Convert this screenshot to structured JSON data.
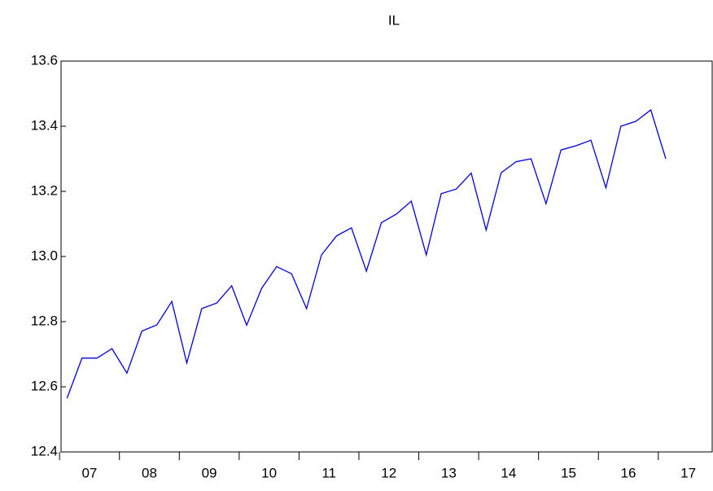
{
  "chart_data": {
    "type": "line",
    "title": "IL",
    "series": [
      {
        "name": "IL",
        "color": "#0000dd",
        "values": [
          12.565,
          12.688,
          12.688,
          12.717,
          12.642,
          12.771,
          12.79,
          12.862,
          12.673,
          12.84,
          12.857,
          12.91,
          12.789,
          12.902,
          12.969,
          12.947,
          12.84,
          13.005,
          13.063,
          13.088,
          12.955,
          13.104,
          13.13,
          13.17,
          13.005,
          13.193,
          13.207,
          13.256,
          13.081,
          13.257,
          13.291,
          13.3,
          13.162,
          13.327,
          13.34,
          13.357,
          13.211,
          13.4,
          13.415,
          13.45,
          13.3
        ]
      }
    ],
    "xticks": [
      {
        "value": 1.5,
        "label": "07"
      },
      {
        "value": 5.5,
        "label": "08"
      },
      {
        "value": 9.5,
        "label": "09"
      },
      {
        "value": 13.5,
        "label": "10"
      },
      {
        "value": 17.5,
        "label": "11"
      },
      {
        "value": 21.5,
        "label": "12"
      },
      {
        "value": 25.5,
        "label": "13"
      },
      {
        "value": 29.5,
        "label": "14"
      },
      {
        "value": 33.5,
        "label": "15"
      },
      {
        "value": 37.5,
        "label": "16"
      },
      {
        "value": 41.5,
        "label": "17"
      }
    ],
    "xlim": [
      -0.4,
      43.1
    ],
    "ylim": [
      12.4,
      13.6
    ],
    "yticks": [
      12.4,
      12.6,
      12.8,
      {
        "value": 13,
        "label": "13.0"
      },
      13.2,
      13.4,
      13.6
    ]
  }
}
